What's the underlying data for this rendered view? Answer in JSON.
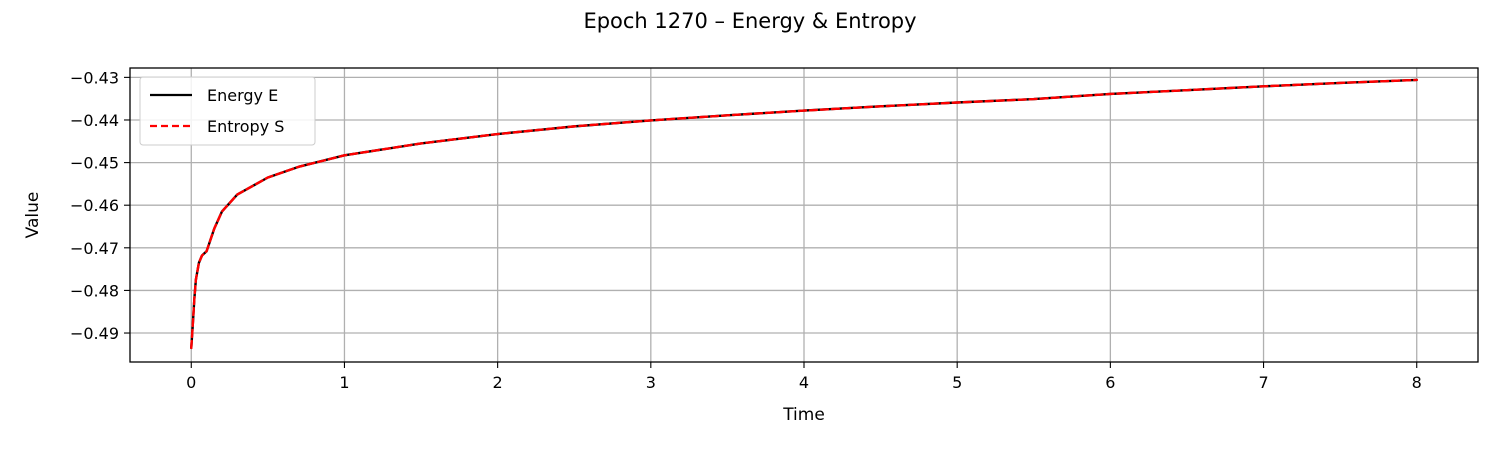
{
  "chart_data": {
    "type": "line",
    "title": "Epoch 1270 – Energy & Entropy",
    "xlabel": "Time",
    "ylabel": "Value",
    "xlim": [
      -0.4,
      8.4
    ],
    "ylim": [
      -0.4968,
      -0.4278
    ],
    "xticks": [
      0,
      1,
      2,
      3,
      4,
      5,
      6,
      7,
      8
    ],
    "xtick_labels": [
      "0",
      "1",
      "2",
      "3",
      "4",
      "5",
      "6",
      "7",
      "8"
    ],
    "yticks": [
      -0.49,
      -0.48,
      -0.47,
      -0.46,
      -0.45,
      -0.44,
      -0.43
    ],
    "ytick_labels": [
      "−0.49",
      "−0.48",
      "−0.47",
      "−0.46",
      "−0.45",
      "−0.44",
      "−0.43"
    ],
    "grid": true,
    "legend_position": "top-left",
    "x": [
      0,
      0.01,
      0.02,
      0.03,
      0.05,
      0.07,
      0.1,
      0.15,
      0.2,
      0.3,
      0.5,
      0.7,
      1.0,
      1.5,
      2.0,
      2.5,
      3.0,
      3.5,
      4.0,
      4.5,
      5.0,
      5.5,
      6.0,
      6.5,
      7.0,
      7.5,
      8.0
    ],
    "series": [
      {
        "name": "Energy E",
        "color": "#000000",
        "style": "solid",
        "values": [
          -0.4935,
          -0.488,
          -0.482,
          -0.4775,
          -0.4735,
          -0.4718,
          -0.4708,
          -0.4655,
          -0.4615,
          -0.4575,
          -0.4535,
          -0.451,
          -0.4483,
          -0.4455,
          -0.4433,
          -0.4415,
          -0.4401,
          -0.4389,
          -0.4378,
          -0.4368,
          -0.4359,
          -0.4351,
          -0.4339,
          -0.433,
          -0.4321,
          -0.4313,
          -0.4306
        ]
      },
      {
        "name": "Entropy S",
        "color": "#ff0000",
        "style": "dashed",
        "values": [
          -0.4935,
          -0.488,
          -0.482,
          -0.4775,
          -0.4735,
          -0.4718,
          -0.4708,
          -0.4655,
          -0.4615,
          -0.4575,
          -0.4535,
          -0.451,
          -0.4483,
          -0.4455,
          -0.4433,
          -0.4415,
          -0.4401,
          -0.4389,
          -0.4378,
          -0.4368,
          -0.4359,
          -0.4351,
          -0.4339,
          -0.433,
          -0.4321,
          -0.4313,
          -0.4306
        ]
      }
    ]
  }
}
